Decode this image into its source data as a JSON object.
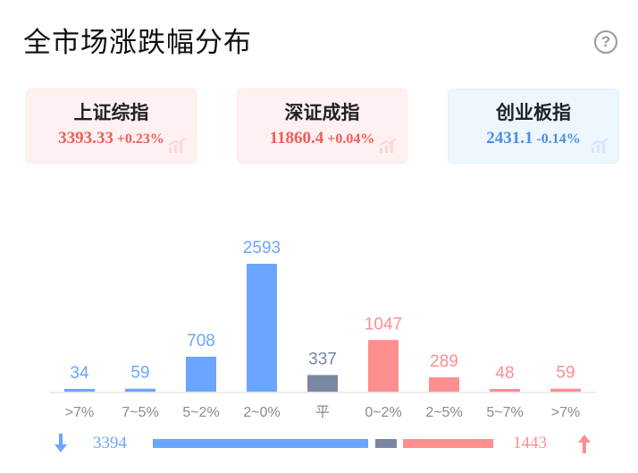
{
  "page": {
    "title": "全市场涨跌幅分布"
  },
  "indices": [
    {
      "name": "上证综指",
      "price": "3393.33",
      "change": "+0.23%",
      "direction": "up"
    },
    {
      "name": "深证成指",
      "price": "11860.4",
      "change": "+0.04%",
      "direction": "up"
    },
    {
      "name": "创业板指",
      "price": "2431.1",
      "change": "-0.14%",
      "direction": "down"
    }
  ],
  "summary": {
    "down_count": "3394",
    "up_count": "1443",
    "flat_count": 337
  },
  "colors": {
    "down": "#6aa6ff",
    "flat": "#7a87a3",
    "up": "#ff8e8e",
    "down_text": "#6aa6ff",
    "up_text": "#ff8e8e"
  },
  "icons": {
    "help": "question-circle-icon",
    "down_arrow": "arrow-down-icon",
    "up_arrow": "arrow-up-icon",
    "card_deco": "trend-chart-icon"
  },
  "chart_data": {
    "type": "bar",
    "categories": [
      ">7%",
      "7~5%",
      "5~2%",
      "2~0%",
      "平",
      "0~2%",
      "2~5%",
      "5~7%",
      ">7%"
    ],
    "values": [
      34,
      59,
      708,
      2593,
      337,
      1047,
      289,
      48,
      59
    ],
    "bar_groups": [
      "down",
      "down",
      "down",
      "down",
      "flat",
      "up",
      "up",
      "up",
      "up"
    ],
    "ylim": [
      0,
      2593
    ],
    "grid": false,
    "title": "",
    "xlabel": "",
    "ylabel": ""
  }
}
